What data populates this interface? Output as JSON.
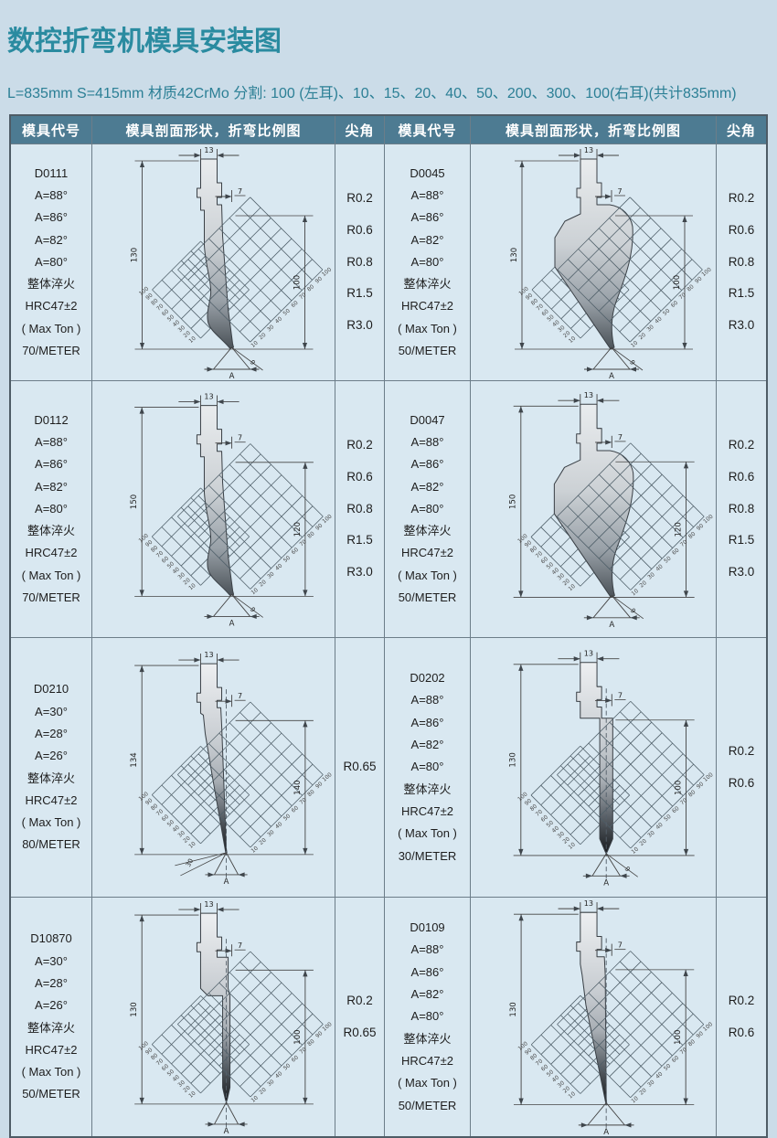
{
  "page": {
    "title": "数控折弯机模具安装图",
    "subtitle": "L=835mm S=415mm 材质42CrMo 分割: 100 (左耳)、10、15、20、40、50、200、300、100(右耳)(共计835mm)"
  },
  "colors": {
    "background": "#cbdce8",
    "cell_background": "#d9e8f1",
    "header_background": "#4d7b92",
    "header_text": "#ffffff",
    "title_text": "#2a8ba0",
    "border": "#4e5c66"
  },
  "table": {
    "headers": [
      "模具代号",
      "模具剖面形状，折弯比例图",
      "尖角",
      "模具代号",
      "模具剖面形状，折弯比例图",
      "尖角"
    ],
    "rows": [
      {
        "left": {
          "code_lines": [
            "D0111",
            "A=88°",
            "A=86°",
            "A=82°",
            "A=80°",
            "整体淬火",
            "HRC47±2",
            "( Max Ton )",
            "70/METER"
          ],
          "tip_radii": [
            "R0.2",
            "R0.6",
            "R0.8",
            "R1.5",
            "R3.0"
          ],
          "diagram": {
            "shape": "slim",
            "top_width": "13",
            "offset": "7",
            "left_height": "130",
            "right_height": "100",
            "bottom_label": "A",
            "tip_angle": "9",
            "grid_scale": [
              "100",
              "90",
              "80",
              "70",
              "60",
              "50",
              "40",
              "30",
              "20",
              "10"
            ],
            "centerline": false,
            "dark_tip": false
          }
        },
        "right": {
          "code_lines": [
            "D0045",
            "A=88°",
            "A=86°",
            "A=82°",
            "A=80°",
            "整体淬火",
            "HRC47±2",
            "( Max Ton )",
            "50/METER"
          ],
          "tip_radii": [
            "R0.2",
            "R0.6",
            "R0.8",
            "R1.5",
            "R3.0"
          ],
          "diagram": {
            "shape": "gooseneck",
            "top_width": "13",
            "offset": "7",
            "left_height": "130",
            "right_height": "100",
            "bottom_label": "A",
            "tip_angle": "9",
            "grid_scale": [
              "100",
              "90",
              "80",
              "70",
              "60",
              "50",
              "40",
              "30",
              "20",
              "10"
            ],
            "centerline": false,
            "dark_tip": false
          }
        }
      },
      {
        "left": {
          "code_lines": [
            "D0112",
            "A=88°",
            "A=86°",
            "A=82°",
            "A=80°",
            "整体淬火",
            "HRC47±2",
            "( Max Ton )",
            "70/METER"
          ],
          "tip_radii": [
            "R0.2",
            "R0.6",
            "R0.8",
            "R1.5",
            "R3.0"
          ],
          "diagram": {
            "shape": "slim",
            "top_width": "13",
            "offset": "7",
            "left_height": "150",
            "right_height": "120",
            "bottom_label": "A",
            "tip_angle": "9",
            "grid_scale": [
              "100",
              "90",
              "80",
              "70",
              "60",
              "50",
              "40",
              "30",
              "20",
              "10"
            ],
            "centerline": false,
            "dark_tip": false
          }
        },
        "right": {
          "code_lines": [
            "D0047",
            "A=88°",
            "A=86°",
            "A=82°",
            "A=80°",
            "整体淬火",
            "HRC47±2",
            "( Max Ton )",
            "50/METER"
          ],
          "tip_radii": [
            "R0.2",
            "R0.6",
            "R0.8",
            "R1.5",
            "R3.0"
          ],
          "diagram": {
            "shape": "gooseneck",
            "top_width": "13",
            "offset": "7",
            "left_height": "150",
            "right_height": "120",
            "bottom_label": "A",
            "tip_angle": "9",
            "grid_scale": [
              "100",
              "90",
              "80",
              "70",
              "60",
              "50",
              "40",
              "30",
              "20",
              "10"
            ],
            "centerline": false,
            "dark_tip": false
          }
        }
      },
      {
        "left": {
          "code_lines": [
            "D0210",
            "A=30°",
            "A=28°",
            "A=26°",
            "整体淬火",
            "HRC47±2",
            "( Max Ton )",
            "80/METER"
          ],
          "tip_radii": [
            "R0.65"
          ],
          "diagram": {
            "shape": "acute",
            "top_width": "13",
            "offset": "7",
            "left_height": "134",
            "right_height": "140",
            "bottom_label": "A",
            "tip_angle": "",
            "angle_note": "30",
            "grid_scale": [
              "100",
              "90",
              "80",
              "70",
              "60",
              "50",
              "40",
              "30",
              "20",
              "10"
            ],
            "centerline": true,
            "dark_tip": true
          }
        },
        "right": {
          "code_lines": [
            "D0202",
            "A=88°",
            "A=86°",
            "A=82°",
            "A=80°",
            "整体淬火",
            "HRC47±2",
            "( Max Ton )",
            "30/METER"
          ],
          "tip_radii": [
            "R0.2",
            "R0.6"
          ],
          "diagram": {
            "shape": "narrow",
            "top_width": "13",
            "offset": "7",
            "left_height": "130",
            "right_height": "100",
            "bottom_label": "A",
            "tip_angle": "9",
            "grid_scale": [
              "100",
              "90",
              "80",
              "70",
              "60",
              "50",
              "40",
              "30",
              "20",
              "10"
            ],
            "centerline": true,
            "dark_tip": true
          }
        }
      },
      {
        "left": {
          "code_lines": [
            "D10870",
            "A=30°",
            "A=28°",
            "A=26°",
            "整体淬火",
            "HRC47±2",
            "( Max Ton )",
            "50/METER"
          ],
          "tip_radii": [
            "R0.2",
            "R0.65"
          ],
          "diagram": {
            "shape": "thin",
            "top_width": "13",
            "offset": "7",
            "left_height": "130",
            "right_height": "100",
            "bottom_label": "A",
            "tip_angle": "",
            "grid_scale": [
              "100",
              "90",
              "80",
              "70",
              "60",
              "50",
              "40",
              "30",
              "20",
              "10"
            ],
            "centerline": true,
            "dark_tip": true
          }
        },
        "right": {
          "code_lines": [
            "D0109",
            "A=88°",
            "A=86°",
            "A=82°",
            "A=80°",
            "整体淬火",
            "HRC47±2",
            "( Max Ton )",
            "50/METER"
          ],
          "tip_radii": [
            "R0.2",
            "R0.6"
          ],
          "diagram": {
            "shape": "taper",
            "top_width": "13",
            "offset": "7",
            "left_height": "130",
            "right_height": "100",
            "bottom_label": "A",
            "tip_angle": "",
            "grid_scale": [
              "100",
              "90",
              "80",
              "70",
              "60",
              "50",
              "40",
              "30",
              "20",
              "10"
            ],
            "centerline": true,
            "dark_tip": true
          }
        }
      }
    ]
  }
}
